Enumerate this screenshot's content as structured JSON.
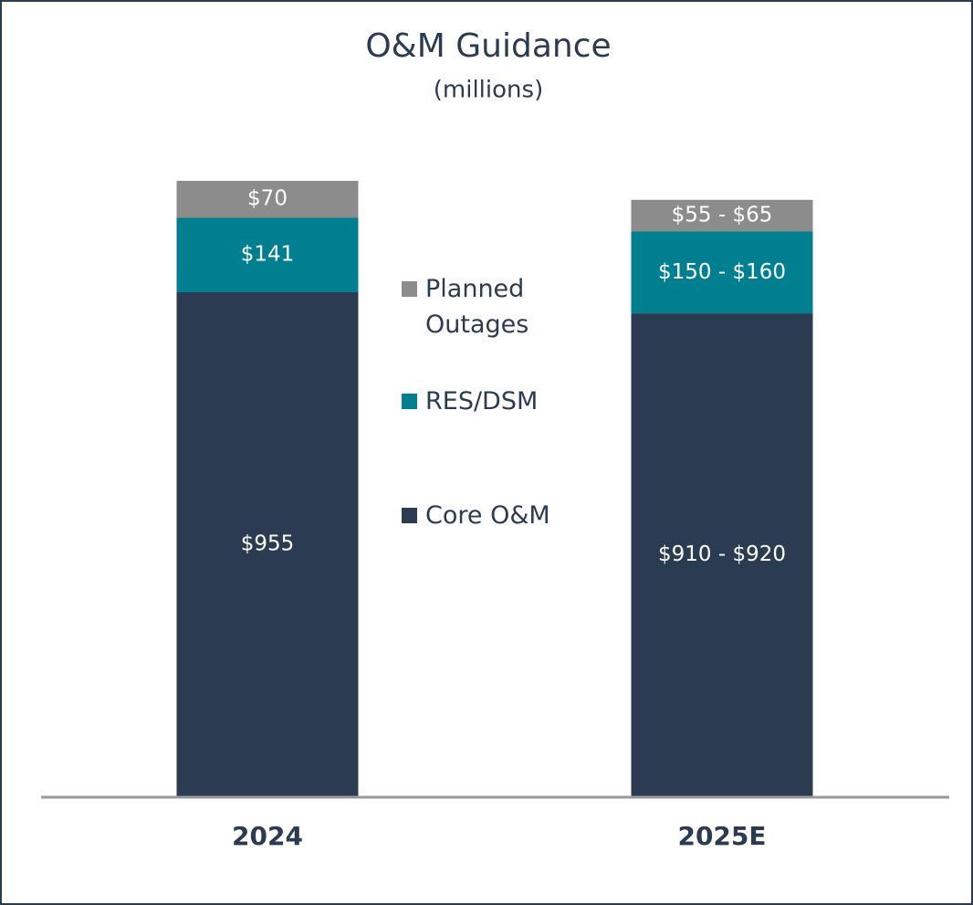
{
  "chart_data": {
    "type": "stacked_bar",
    "title": "O&M Guidance",
    "subtitle": "(millions)",
    "categories": [
      "2024",
      "2025E"
    ],
    "series": [
      {
        "name": "Core O&M",
        "color": "#2a3b52",
        "values": [
          955,
          915
        ],
        "value_labels": [
          "$955",
          "$910 - $920"
        ]
      },
      {
        "name": "RES/DSM",
        "color": "#007f91",
        "values": [
          141,
          155
        ],
        "value_labels": [
          "$141",
          "$150 - $160"
        ]
      },
      {
        "name": "Planned Outages",
        "color": "#8c8c8c",
        "values": [
          70,
          60
        ],
        "value_labels": [
          "$70",
          "$55 - $65"
        ]
      }
    ]
  }
}
